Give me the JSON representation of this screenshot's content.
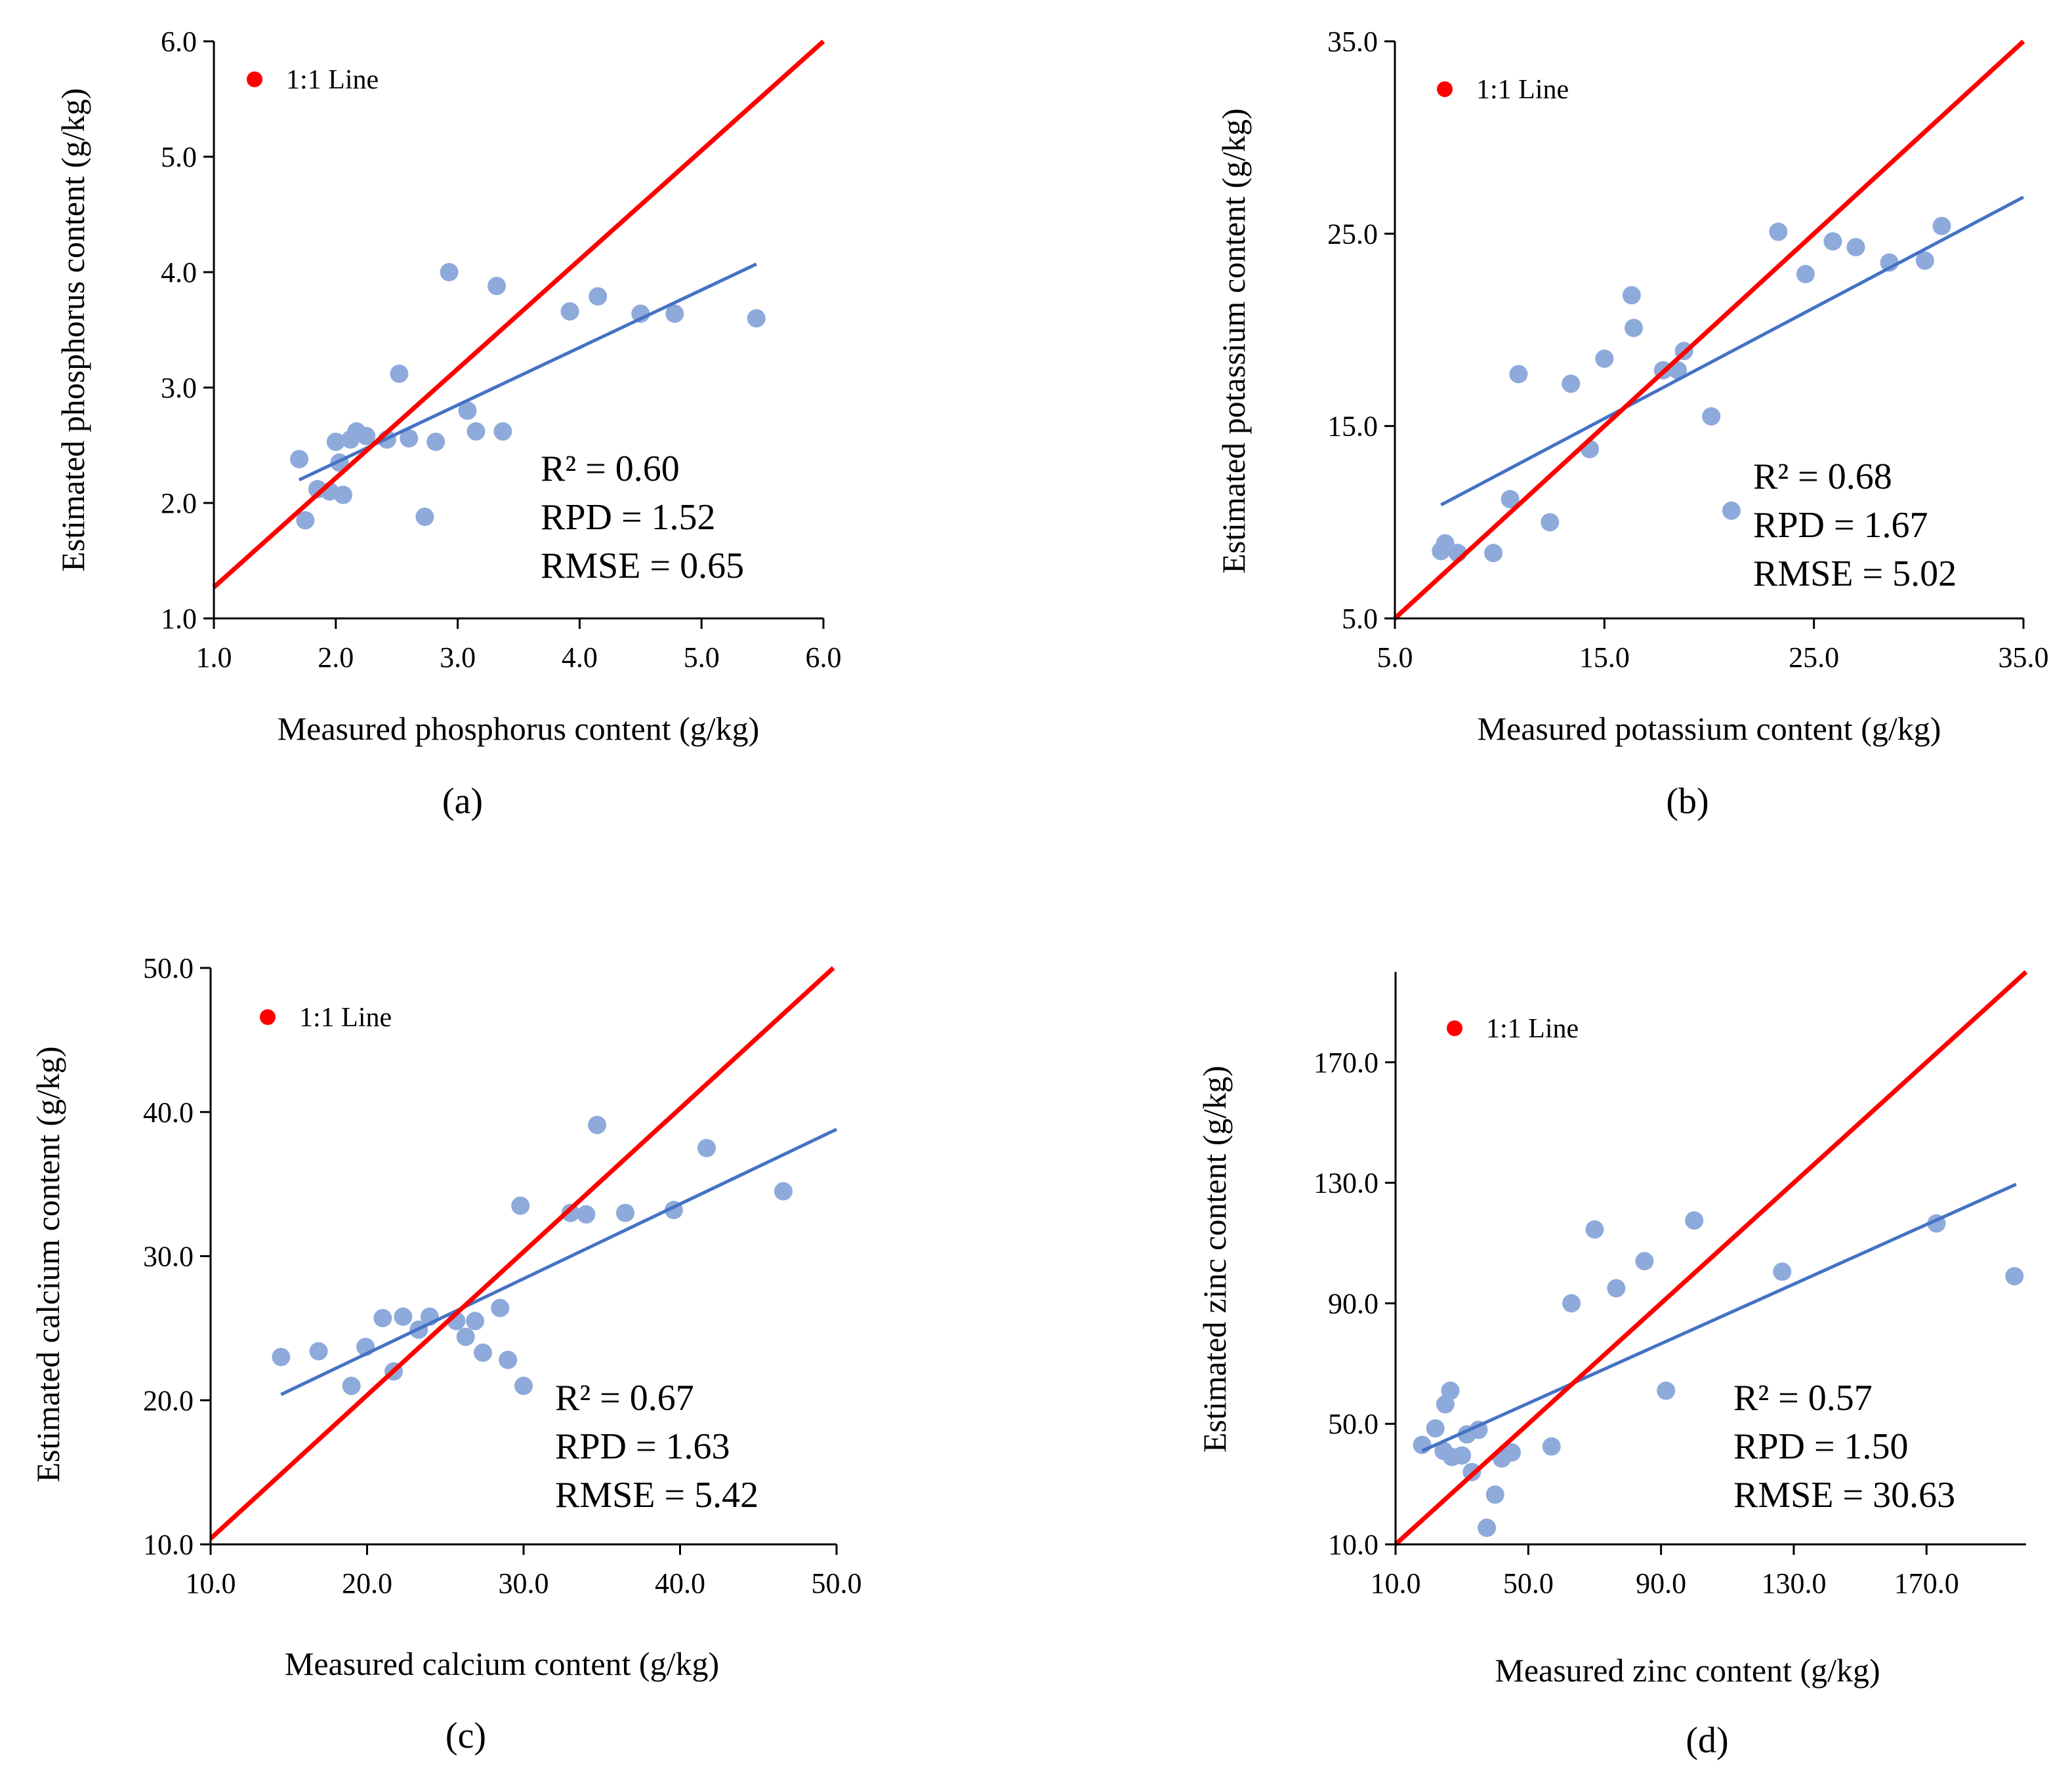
{
  "chart_data": [
    {
      "type": "scatter",
      "panel_label": "(a)",
      "xlabel": "Measured phosphorus content (g/kg)",
      "ylabel": "Estimated phosphorus  content (g/kg)",
      "xlim": [
        1.0,
        6.0
      ],
      "ylim": [
        1.0,
        6.0
      ],
      "xticks": [
        "1.0",
        "2.0",
        "3.0",
        "4.0",
        "5.0",
        "6.0"
      ],
      "yticks": [
        "1.0",
        "2.0",
        "3.0",
        "4.0",
        "5.0",
        "6.0"
      ],
      "legend": "1:1 Line",
      "stats": [
        "R² = 0.60",
        "RPD = 1.52",
        "RMSE = 0.65"
      ],
      "points": [
        [
          1.7,
          2.38
        ],
        [
          1.75,
          1.85
        ],
        [
          1.85,
          2.12
        ],
        [
          1.95,
          2.1
        ],
        [
          2.0,
          2.53
        ],
        [
          2.03,
          2.35
        ],
        [
          2.06,
          2.07
        ],
        [
          2.12,
          2.55
        ],
        [
          2.17,
          2.62
        ],
        [
          2.25,
          2.58
        ],
        [
          2.42,
          2.55
        ],
        [
          2.52,
          3.12
        ],
        [
          2.6,
          2.56
        ],
        [
          2.73,
          1.88
        ],
        [
          2.82,
          2.53
        ],
        [
          2.93,
          4.0
        ],
        [
          3.08,
          2.8
        ],
        [
          3.15,
          2.62
        ],
        [
          3.32,
          3.88
        ],
        [
          3.37,
          2.62
        ],
        [
          3.92,
          3.66
        ],
        [
          4.15,
          3.79
        ],
        [
          4.5,
          3.64
        ],
        [
          4.78,
          3.64
        ],
        [
          5.45,
          3.6
        ]
      ],
      "fit_line": [
        [
          1.7,
          2.2
        ],
        [
          5.45,
          4.07
        ]
      ],
      "one_to_one": [
        [
          1.0,
          1.27
        ],
        [
          6.0,
          6.0
        ]
      ]
    },
    {
      "type": "scatter",
      "panel_label": "(b)",
      "xlabel": "Measured potassium content (g/kg)",
      "ylabel": "Estimated potassium content (g/kg)",
      "xlim": [
        5.0,
        35.0
      ],
      "ylim": [
        5.0,
        35.0
      ],
      "xticks": [
        "5.0",
        "15.0",
        "25.0",
        "35.0"
      ],
      "yticks": [
        "5.0",
        "15.0",
        "25.0",
        "35.0"
      ],
      "legend": "1:1 Line",
      "stats": [
        "R² = 0.68",
        "RPD = 1.67",
        "RMSE = 5.02"
      ],
      "points": [
        [
          7.2,
          8.5
        ],
        [
          7.4,
          8.9
        ],
        [
          8.0,
          8.4
        ],
        [
          9.7,
          8.4
        ],
        [
          10.5,
          11.2
        ],
        [
          10.9,
          17.7
        ],
        [
          12.4,
          10.0
        ],
        [
          13.4,
          17.2
        ],
        [
          14.3,
          13.8
        ],
        [
          15.0,
          18.5
        ],
        [
          16.3,
          21.8
        ],
        [
          16.4,
          20.1
        ],
        [
          17.8,
          17.9
        ],
        [
          18.5,
          17.9
        ],
        [
          18.8,
          18.9
        ],
        [
          20.1,
          15.5
        ],
        [
          23.3,
          25.1
        ],
        [
          24.6,
          22.9
        ],
        [
          25.9,
          24.6
        ],
        [
          27.0,
          24.3
        ],
        [
          28.6,
          23.5
        ],
        [
          30.3,
          23.6
        ],
        [
          31.1,
          25.4
        ]
      ],
      "clipped_point": [
        21.0,
        10.6
      ],
      "fit_line": [
        [
          7.2,
          10.9
        ],
        [
          35.0,
          26.9
        ]
      ],
      "one_to_one": [
        [
          5.0,
          5.0
        ],
        [
          35.0,
          35.0
        ]
      ]
    },
    {
      "type": "scatter",
      "panel_label": "(c)",
      "xlabel": "Measured calcium content (g/kg)",
      "ylabel": "Estimated calcium content (g/kg)",
      "xlim": [
        10.0,
        50.0
      ],
      "ylim": [
        10.0,
        50.0
      ],
      "xticks": [
        "10.0",
        "20.0",
        "30.0",
        "40.0",
        "50.0"
      ],
      "yticks": [
        "10.0",
        "20.0",
        "30.0",
        "40.0",
        "50.0"
      ],
      "legend": "1:1 Line",
      "stats": [
        "R² = 0.67",
        "RPD = 1.63",
        "RMSE = 5.42"
      ],
      "points": [
        [
          14.5,
          23.0
        ],
        [
          16.9,
          23.4
        ],
        [
          19.0,
          21.0
        ],
        [
          19.9,
          23.7
        ],
        [
          21.0,
          25.7
        ],
        [
          21.7,
          22.0
        ],
        [
          22.3,
          25.8
        ],
        [
          23.3,
          24.9
        ],
        [
          24.0,
          25.8
        ],
        [
          25.7,
          25.5
        ],
        [
          26.3,
          24.4
        ],
        [
          26.9,
          25.5
        ],
        [
          27.4,
          23.3
        ],
        [
          28.5,
          26.4
        ],
        [
          29.0,
          22.8
        ],
        [
          29.8,
          33.5
        ],
        [
          30.0,
          21.0
        ],
        [
          33.0,
          33.0
        ],
        [
          34.0,
          32.9
        ],
        [
          34.7,
          39.1
        ],
        [
          36.5,
          33.0
        ],
        [
          39.6,
          33.2
        ],
        [
          41.7,
          37.5
        ],
        [
          46.6,
          34.5
        ]
      ],
      "fit_line": [
        [
          14.5,
          20.4
        ],
        [
          50.0,
          38.8
        ]
      ],
      "one_to_one": [
        [
          10.0,
          10.4
        ],
        [
          49.8,
          50.0
        ]
      ]
    },
    {
      "type": "scatter",
      "panel_label": "(d)",
      "xlabel": "Measured zinc content (g/kg)",
      "ylabel": "Estimated zinc  content (g/kg)",
      "xlim": [
        10.0,
        200.0
      ],
      "ylim": [
        10.0,
        200.0
      ],
      "xticks": [
        "10.0",
        "50.0",
        "90.0",
        "130.0",
        "170.0"
      ],
      "yticks": [
        "10.0",
        "50.0",
        "90.0",
        "130.0",
        "170.0"
      ],
      "legend": "1:1 Line",
      "stats": [
        "R² = 0.57",
        "RPD = 1.50",
        "RMSE = 30.63"
      ],
      "points": [
        [
          18.0,
          43.0
        ],
        [
          22.0,
          48.5
        ],
        [
          24.5,
          41.0
        ],
        [
          25.0,
          56.5
        ],
        [
          26.5,
          61.0
        ],
        [
          27.0,
          39.0
        ],
        [
          30.0,
          39.5
        ],
        [
          31.5,
          46.5
        ],
        [
          33.0,
          34.0
        ],
        [
          35.0,
          48.0
        ],
        [
          37.5,
          15.5
        ],
        [
          40.0,
          26.5
        ],
        [
          42.0,
          38.5
        ],
        [
          43.5,
          40.5
        ],
        [
          45.0,
          40.5
        ],
        [
          57.0,
          42.5
        ],
        [
          63.0,
          90.0
        ],
        [
          70.0,
          114.5
        ],
        [
          76.5,
          95.0
        ],
        [
          85.0,
          104.0
        ],
        [
          91.5,
          61.0
        ],
        [
          100.0,
          117.5
        ],
        [
          126.5,
          100.5
        ],
        [
          173.0,
          116.5
        ],
        [
          196.5,
          99.0
        ]
      ],
      "fit_line": [
        [
          18.0,
          41.0
        ],
        [
          197.0,
          129.5
        ]
      ],
      "one_to_one": [
        [
          10.0,
          10.0
        ],
        [
          200.0,
          200.0
        ]
      ]
    }
  ]
}
